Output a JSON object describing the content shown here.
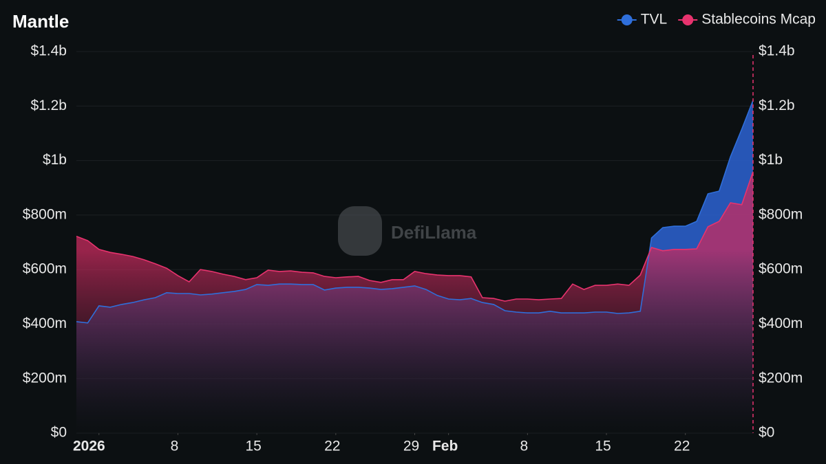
{
  "chart_data": {
    "type": "area",
    "title": "Mantle",
    "watermark": "DefiLlama",
    "x": [
      -2,
      -1,
      0,
      1,
      2,
      3,
      4,
      5,
      6,
      7,
      8,
      9,
      10,
      11,
      12,
      13,
      14,
      15,
      16,
      17,
      18,
      19,
      20,
      21,
      22,
      23,
      24,
      25,
      26,
      27,
      28,
      29,
      30,
      31,
      32,
      33,
      34,
      35,
      36,
      37,
      38,
      39,
      40,
      41,
      42,
      43,
      44,
      45,
      46,
      47,
      48,
      49,
      50,
      51,
      52,
      53,
      54,
      55,
      56,
      57,
      58
    ],
    "xlim": [
      -2,
      58
    ],
    "xticks": [
      {
        "value": 0,
        "label": "2026"
      },
      {
        "value": 7,
        "label": "8"
      },
      {
        "value": 14,
        "label": "15"
      },
      {
        "value": 21,
        "label": "22"
      },
      {
        "value": 28,
        "label": "29"
      },
      {
        "value": 31,
        "label": "Feb"
      },
      {
        "value": 38,
        "label": "8"
      },
      {
        "value": 45,
        "label": "15"
      },
      {
        "value": 52,
        "label": "22"
      }
    ],
    "series": [
      {
        "name": "TVL",
        "color": "#2f6fdb",
        "values": [
          409000000.0,
          404000000.0,
          467000000.0,
          462000000.0,
          472000000.0,
          479000000.0,
          489000000.0,
          497000000.0,
          515000000.0,
          512000000.0,
          512000000.0,
          507000000.0,
          510000000.0,
          515000000.0,
          520000000.0,
          527000000.0,
          545000000.0,
          542000000.0,
          547000000.0,
          547000000.0,
          545000000.0,
          545000000.0,
          525000000.0,
          532000000.0,
          535000000.0,
          535000000.0,
          532000000.0,
          527000000.0,
          530000000.0,
          535000000.0,
          540000000.0,
          527000000.0,
          505000000.0,
          492000000.0,
          489000000.0,
          494000000.0,
          479000000.0,
          472000000.0,
          449000000.0,
          444000000.0,
          441000000.0,
          441000000.0,
          447000000.0,
          441000000.0,
          441000000.0,
          441000000.0,
          444000000.0,
          444000000.0,
          439000000.0,
          441000000.0,
          447000000.0,
          716000000.0,
          754000000.0,
          759000000.0,
          759000000.0,
          777000000.0,
          878000000.0,
          888000000.0,
          1014000000.0,
          1115000000.0,
          1221000000.0
        ]
      },
      {
        "name": "Stablecoins Mcap",
        "color": "#e8336e",
        "axis": "y2",
        "values": [
          722000000.0,
          706000000.0,
          674000000.0,
          663000000.0,
          656000000.0,
          648000000.0,
          636000000.0,
          621000000.0,
          605000000.0,
          578000000.0,
          555000000.0,
          600000000.0,
          593000000.0,
          583000000.0,
          575000000.0,
          563000000.0,
          570000000.0,
          598000000.0,
          593000000.0,
          595000000.0,
          590000000.0,
          588000000.0,
          575000000.0,
          570000000.0,
          573000000.0,
          575000000.0,
          560000000.0,
          553000000.0,
          563000000.0,
          563000000.0,
          593000000.0,
          585000000.0,
          580000000.0,
          578000000.0,
          578000000.0,
          573000000.0,
          497000000.0,
          494000000.0,
          484000000.0,
          492000000.0,
          492000000.0,
          489000000.0,
          492000000.0,
          494000000.0,
          547000000.0,
          527000000.0,
          542000000.0,
          542000000.0,
          547000000.0,
          542000000.0,
          580000000.0,
          681000000.0,
          669000000.0,
          674000000.0,
          674000000.0,
          676000000.0,
          757000000.0,
          777000000.0,
          845000000.0,
          838000000.0,
          959000000.0
        ]
      }
    ],
    "ylim": [
      0,
      1400000000
    ],
    "yticks": [
      {
        "value": 0,
        "label": "$0"
      },
      {
        "value": 200000000,
        "label": "$200m"
      },
      {
        "value": 400000000,
        "label": "$400m"
      },
      {
        "value": 600000000,
        "label": "$600m"
      },
      {
        "value": 800000000,
        "label": "$800m"
      },
      {
        "value": 1000000000,
        "label": "$1b"
      },
      {
        "value": 1200000000,
        "label": "$1.2b"
      },
      {
        "value": 1400000000,
        "label": "$1.4b"
      }
    ],
    "y2lim": [
      0,
      1400000000
    ],
    "y2ticks": [
      {
        "value": 0,
        "label": "$0"
      },
      {
        "value": 200000000,
        "label": "$200m"
      },
      {
        "value": 400000000,
        "label": "$400m"
      },
      {
        "value": 600000000,
        "label": "$600m"
      },
      {
        "value": 800000000,
        "label": "$800m"
      },
      {
        "value": 1000000000,
        "label": "$1b"
      },
      {
        "value": 1200000000,
        "label": "$1.2b"
      },
      {
        "value": 1400000000,
        "label": "$1.4b"
      }
    ],
    "grid": true,
    "legend": "top-right"
  }
}
